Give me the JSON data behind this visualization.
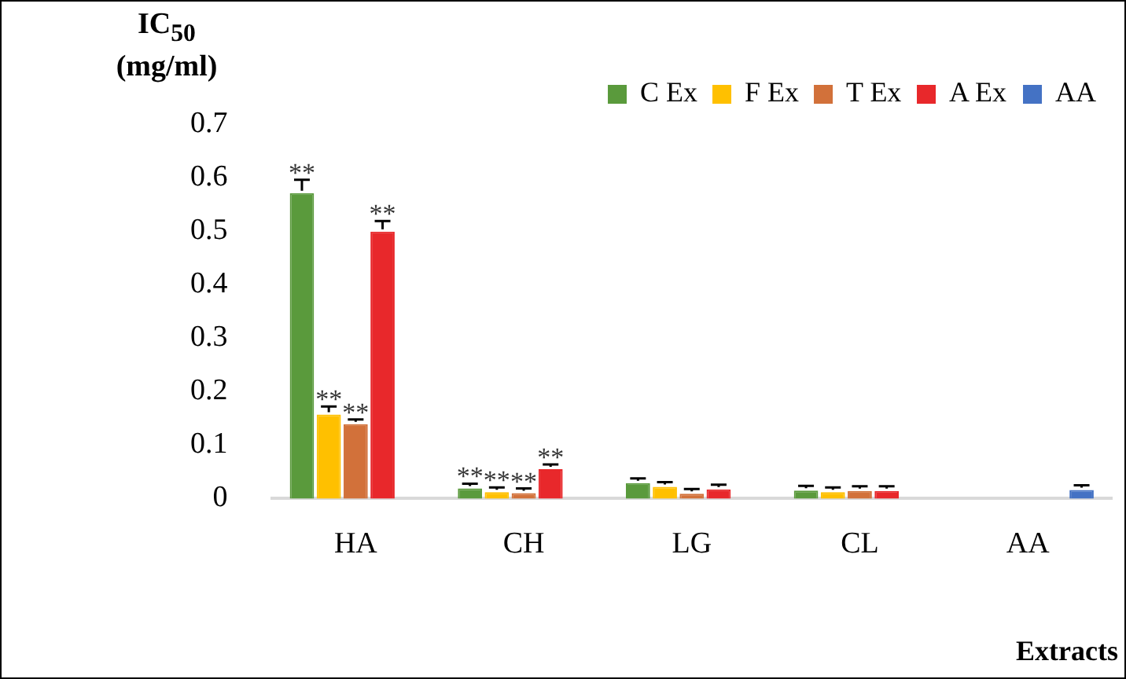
{
  "chart_data": {
    "type": "bar",
    "ylabel": "IC$_{50}$ (mg/ml)",
    "xlabel": "Extracts",
    "categories": [
      "HA",
      "CH",
      "LG",
      "CL",
      "AA"
    ],
    "series": [
      {
        "name": "C Ex",
        "color": "#5a9a3c",
        "values": [
          0.571,
          0.019,
          0.029,
          0.015,
          null
        ],
        "errors": [
          0.025,
          0.003,
          0.006,
          0.002,
          null
        ],
        "value_labels": [
          "**",
          "**",
          null,
          null,
          null
        ]
      },
      {
        "name": "F Ex",
        "color": "#ffc000",
        "values": [
          0.157,
          0.012,
          0.022,
          0.012,
          null
        ],
        "errors": [
          0.015,
          0.003,
          0.004,
          0.002,
          null
        ],
        "value_labels": [
          "**",
          "**",
          null,
          null,
          null
        ]
      },
      {
        "name": "T Ex",
        "color": "#d2713a",
        "values": [
          0.139,
          0.01,
          0.009,
          0.014,
          null
        ],
        "errors": [
          0.007,
          0.003,
          0.002,
          0.003,
          null
        ],
        "value_labels": [
          "**",
          "**",
          null,
          null,
          null
        ]
      },
      {
        "name": "A Ex",
        "color": "#e8282b",
        "values": [
          0.499,
          0.055,
          0.017,
          0.014,
          null
        ],
        "errors": [
          0.02,
          0.003,
          0.002,
          0.004,
          null
        ],
        "value_labels": [
          "**",
          "**",
          null,
          null,
          null
        ]
      },
      {
        "name": "AA",
        "color": "#4472c4",
        "values": [
          null,
          null,
          null,
          null,
          0.016
        ],
        "errors": [
          null,
          null,
          null,
          null,
          0.003
        ]
      }
    ],
    "ylim": [
      0,
      0.7
    ],
    "yticks": [
      0,
      0.1,
      0.2,
      0.3,
      0.4,
      0.5,
      0.6,
      0.7
    ],
    "legend": "top right",
    "grid": false
  }
}
